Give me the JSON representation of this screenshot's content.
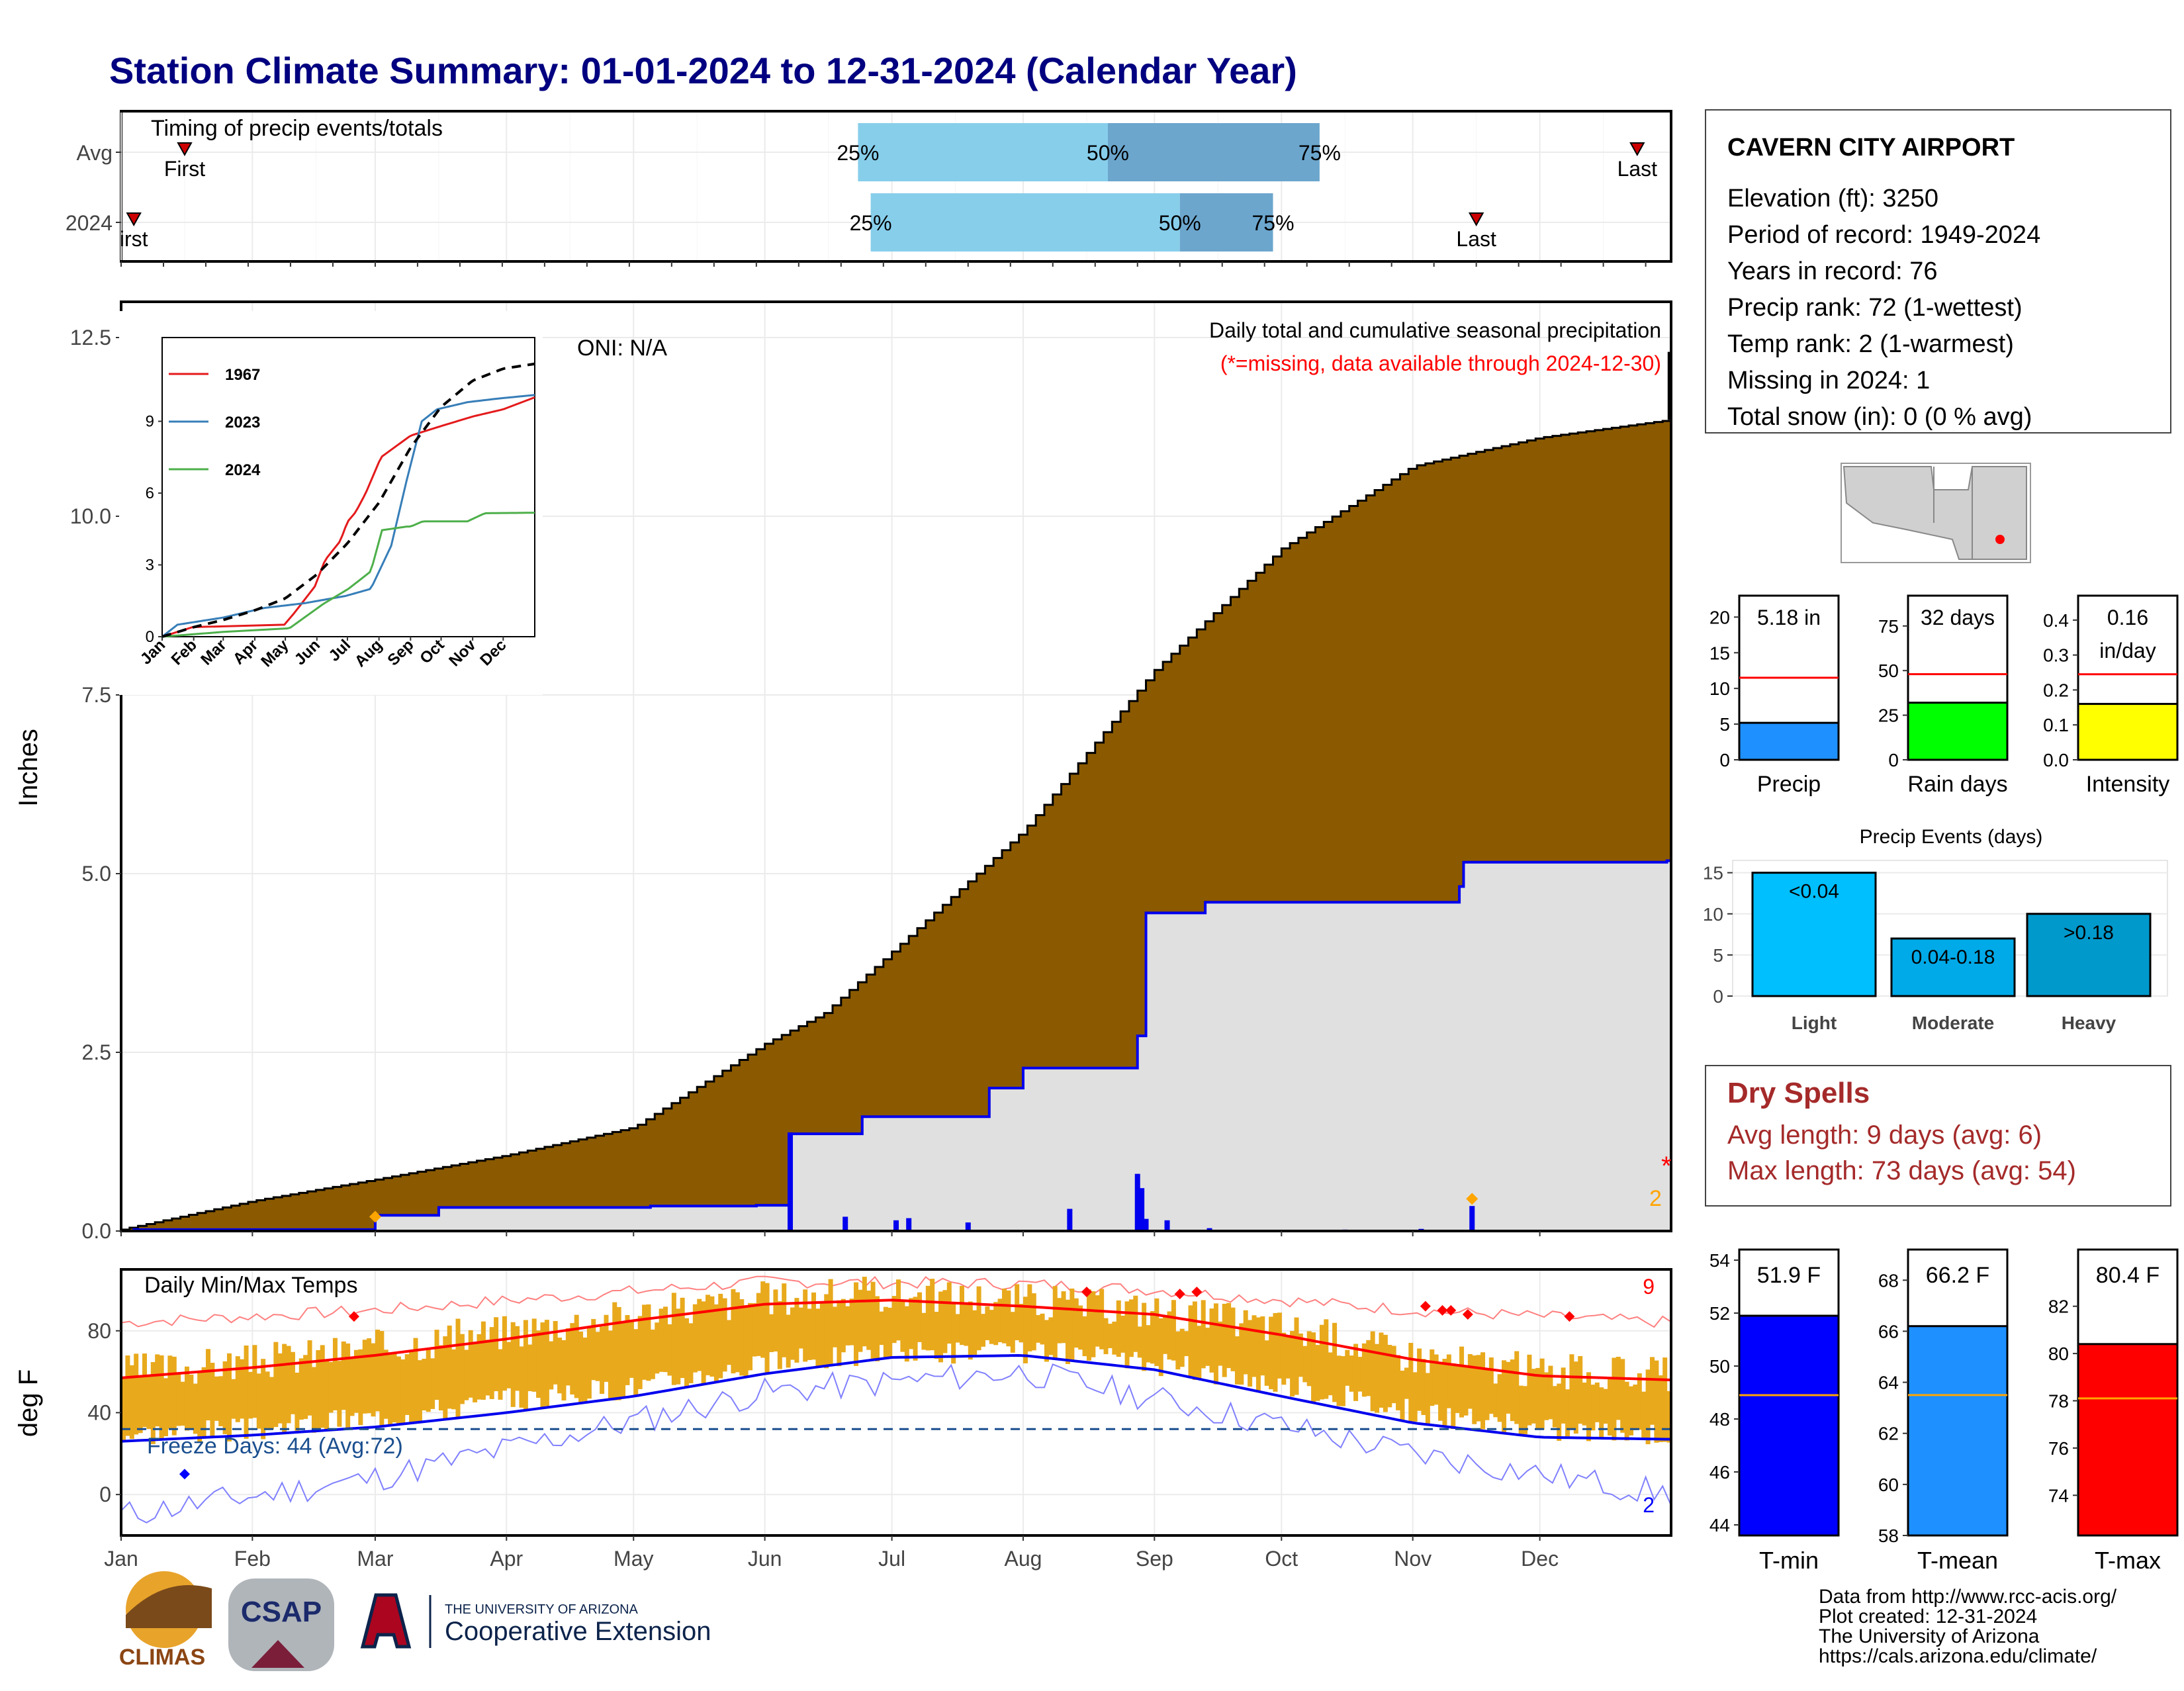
{
  "title": "Station Climate Summary: 01-01-2024 to 12-31-2024 (Calendar Year)",
  "months": [
    "Jan",
    "Feb",
    "Mar",
    "Apr",
    "May",
    "Jun",
    "Jul",
    "Aug",
    "Sep",
    "Oct",
    "Nov",
    "Dec"
  ],
  "timing": {
    "label": "Timing of precip events/totals",
    "rows": [
      {
        "name": "Avg",
        "first_day": 15,
        "q25_day": 174,
        "q50_day": 233,
        "q75_day": 283,
        "last_day": 358,
        "first_label": "First",
        "last_label": "Last"
      },
      {
        "name": "2024",
        "first_day": 3,
        "q25_day": 177,
        "q50_day": 250,
        "q75_day": 272,
        "last_day": 320,
        "first_label": "irst",
        "last_label": "Last"
      }
    ],
    "pct_labels": [
      "25%",
      "50%",
      "75%"
    ]
  },
  "station": {
    "name": "CAVERN CITY AIRPORT",
    "lines": [
      "Elevation (ft): 3250",
      "Period of record: 1949-2024",
      "Years in record: 76",
      "Precip rank: 72 (1-wettest)",
      "Temp rank: 2 (1-warmest)",
      "Missing in 2024: 1",
      "Total snow (in): 0 (0 % avg)"
    ]
  },
  "precip_panel": {
    "title": "Daily total and cumulative seasonal precipitation",
    "subtitle": "(*=missing, data available through 2024-12-30)",
    "ylabel": "Inches",
    "oni": "ONI: N/A",
    "missing_mark": "*",
    "count_label": "2",
    "colors": {
      "avg_fill": "#8B5A00",
      "obs_fill": "#E0E0E0",
      "obs_line": "#0000EE"
    }
  },
  "temp_panel": {
    "title": "Daily Min/Max Temps",
    "ylabel": "deg F",
    "freeze": "Freeze Days: 44 (Avg:72)",
    "count_hi": "9",
    "count_lo": "2"
  },
  "inset": {
    "legend": [
      "1967",
      "2023",
      "2024"
    ],
    "colors": [
      "#E41A1C",
      "#377EB8",
      "#4DAF4A"
    ],
    "months": [
      "Jan",
      "Feb",
      "Mar",
      "Apr",
      "May",
      "Jun",
      "Jul",
      "Aug",
      "Sep",
      "Oct",
      "Nov",
      "Dec"
    ]
  },
  "minibars": [
    {
      "label": "Precip",
      "value_text": "5.18 in",
      "value": 5.18,
      "avg": 11.5,
      "ymax": 23,
      "ticks": [
        "0",
        "5",
        "10",
        "15",
        "20"
      ],
      "tickvals": [
        0,
        5,
        10,
        15,
        20
      ],
      "color": "#1E90FF"
    },
    {
      "label": "Rain days",
      "value_text": "32 days",
      "value": 32,
      "avg": 48,
      "ymax": 92,
      "ticks": [
        "0",
        "25",
        "50",
        "75"
      ],
      "tickvals": [
        0,
        25,
        50,
        75
      ],
      "color": "#00FF00"
    },
    {
      "label": "Intensity",
      "value_text": "0.16 in/day",
      "value": 0.16,
      "avg": 0.245,
      "ymax": 0.47,
      "ticks": [
        "0.0",
        "0.1",
        "0.2",
        "0.3",
        "0.4"
      ],
      "tickvals": [
        0,
        0.1,
        0.2,
        0.3,
        0.4
      ],
      "color": "#FFFF00"
    }
  ],
  "events": {
    "title": "Precip Events (days)",
    "bars": [
      {
        "category": "Light",
        "label": "<0.04",
        "value": 15,
        "color": "#00BFFF"
      },
      {
        "category": "Moderate",
        "label": "0.04-0.18",
        "value": 7,
        "color": "#00AAE8"
      },
      {
        "category": "Heavy",
        "label": ">0.18",
        "value": 10,
        "color": "#0099CC"
      }
    ],
    "ticks": [
      "0",
      "5",
      "10",
      "15"
    ]
  },
  "dry": {
    "title": "Dry Spells",
    "avg": "Avg length: 9 days (avg: 6)",
    "max": "Max length: 73 days (avg: 54)"
  },
  "tbars": [
    {
      "label": "T-min",
      "value_text": "51.9 F",
      "value": 51.9,
      "avg": 48.9,
      "ymin": 43.6,
      "ymax": 54.4,
      "tickvals": [
        44,
        46,
        48,
        50,
        52,
        54
      ],
      "color": "#0000FF"
    },
    {
      "label": "T-mean",
      "value_text": "66.2 F",
      "value": 66.2,
      "avg": 63.5,
      "ymin": 58,
      "ymax": 69.2,
      "tickvals": [
        58,
        60,
        62,
        64,
        66,
        68
      ],
      "color": "#1E90FF"
    },
    {
      "label": "T-max",
      "value_text": "80.4 F",
      "value": 80.4,
      "avg": 78.1,
      "ymin": 72.3,
      "ymax": 84.4,
      "tickvals": [
        74,
        76,
        78,
        80,
        82
      ],
      "color": "#FF0000"
    }
  ],
  "footer": [
    "Data from http://www.rcc-acis.org/",
    "Plot created: 12-31-2024",
    "The University of Arizona",
    "https://cals.arizona.edu/climate/"
  ],
  "logos": {
    "climas": "CLIMAS",
    "csap": "CSAP",
    "ua_small": "THE UNIVERSITY OF ARIZONA",
    "ua_big": "Cooperative Extension"
  },
  "chart_data": {
    "type": "area",
    "title": "Daily total and cumulative seasonal precipitation",
    "ylabel": "Inches",
    "ylim": [
      0,
      13
    ],
    "yticks": [
      0,
      2.5,
      5,
      7.5,
      10,
      12.5
    ],
    "series": [
      {
        "name": "avg_cumulative",
        "x_day": [
          0,
          31,
          60,
          91,
          121,
          152,
          166,
          182,
          213,
          244,
          274,
          305,
          335,
          366
        ],
        "values": [
          0.02,
          0.42,
          0.72,
          1.06,
          1.45,
          2.62,
          3.05,
          3.91,
          5.6,
          7.85,
          9.55,
          10.7,
          11.1,
          11.35
        ]
      },
      {
        "name": "2024_cumulative",
        "x_day": [
          0,
          3,
          55,
          60,
          75,
          125,
          150,
          157,
          158,
          175,
          205,
          213,
          240,
          242,
          256,
          300,
          316,
          317,
          365
        ],
        "values": [
          0,
          0.02,
          0.02,
          0.22,
          0.33,
          0.35,
          0.36,
          0.36,
          1.36,
          1.6,
          2.0,
          2.28,
          2.73,
          4.45,
          4.6,
          4.6,
          4.82,
          5.16,
          5.18
        ]
      },
      {
        "name": "daily_precip",
        "x_day": [
          158,
          171,
          183,
          186,
          200,
          224,
          240,
          241,
          242,
          247,
          257,
          289,
          307,
          319
        ],
        "values": [
          1.38,
          0.2,
          0.15,
          0.18,
          0.12,
          0.31,
          0.8,
          0.6,
          0.17,
          0.15,
          0.04,
          0.02,
          0.03,
          0.35
        ]
      }
    ],
    "inset": {
      "ylim": [
        0,
        12.5
      ],
      "series": [
        {
          "name": "1967",
          "x_day": [
            0,
            30,
            120,
            130,
            150,
            160,
            175,
            182,
            190,
            200,
            215,
            244,
            274,
            305,
            335,
            366
          ],
          "values": [
            0,
            0.4,
            0.5,
            1.0,
            2.1,
            3.2,
            4.0,
            4.8,
            5.2,
            6.0,
            7.5,
            8.4,
            8.8,
            9.2,
            9.5,
            10.0
          ]
        },
        {
          "name": "2023",
          "x_day": [
            0,
            15,
            60,
            100,
            140,
            180,
            205,
            225,
            240,
            255,
            270,
            300,
            330,
            366
          ],
          "values": [
            0,
            0.5,
            0.8,
            1.2,
            1.4,
            1.7,
            2.0,
            3.8,
            6.5,
            9.0,
            9.5,
            9.8,
            9.95,
            10.1
          ]
        },
        {
          "name": "2024",
          "x_day": [
            0,
            60,
            125,
            158,
            183,
            205,
            216,
            240,
            244,
            256,
            300,
            317,
            365
          ],
          "values": [
            0,
            0.2,
            0.35,
            1.36,
            2.0,
            2.73,
            4.45,
            4.6,
            4.6,
            4.82,
            4.82,
            5.16,
            5.18
          ]
        },
        {
          "name": "avg",
          "x_day": [
            0,
            31,
            60,
            91,
            121,
            152,
            182,
            213,
            244,
            274,
            305,
            335,
            366
          ],
          "values": [
            0,
            0.4,
            0.7,
            1.1,
            1.6,
            2.6,
            3.9,
            5.6,
            7.9,
            9.6,
            10.7,
            11.2,
            11.4
          ]
        }
      ]
    },
    "temps": {
      "ylim": [
        -20,
        110
      ],
      "yticks": [
        0,
        40,
        80
      ],
      "freeze_line": 32,
      "normal_max": {
        "x_day": [
          0,
          31,
          60,
          91,
          121,
          152,
          182,
          213,
          244,
          274,
          305,
          335,
          366
        ],
        "values": [
          57,
          62,
          68,
          76,
          85,
          93,
          95,
          92,
          88,
          78,
          66,
          58,
          56
        ]
      },
      "normal_min": {
        "x_day": [
          0,
          31,
          60,
          91,
          121,
          152,
          182,
          213,
          244,
          274,
          305,
          335,
          366
        ],
        "values": [
          26,
          29,
          33,
          40,
          48,
          59,
          67,
          68,
          61,
          48,
          35,
          28,
          27
        ]
      },
      "record_max": {
        "x_day": [
          0,
          60,
          152,
          213,
          244,
          305,
          366
        ],
        "values": [
          84,
          90,
          104,
          103,
          100,
          90,
          84
        ]
      },
      "record_min": {
        "x_day": [
          0,
          60,
          152,
          213,
          244,
          305,
          366
        ],
        "values": [
          -10,
          8,
          50,
          60,
          47,
          20,
          0
        ]
      },
      "obs_max": {
        "x_day": [
          0,
          31,
          60,
          91,
          121,
          152,
          182,
          213,
          244,
          274,
          305,
          335,
          366
        ],
        "values": [
          60,
          65,
          72,
          80,
          88,
          96,
          98,
          95,
          90,
          82,
          68,
          60,
          58
        ]
      },
      "obs_min": {
        "x_day": [
          0,
          31,
          60,
          91,
          121,
          152,
          182,
          213,
          244,
          274,
          305,
          335,
          366
        ],
        "values": [
          30,
          32,
          38,
          46,
          53,
          64,
          70,
          70,
          64,
          54,
          40,
          32,
          30
        ]
      }
    }
  }
}
